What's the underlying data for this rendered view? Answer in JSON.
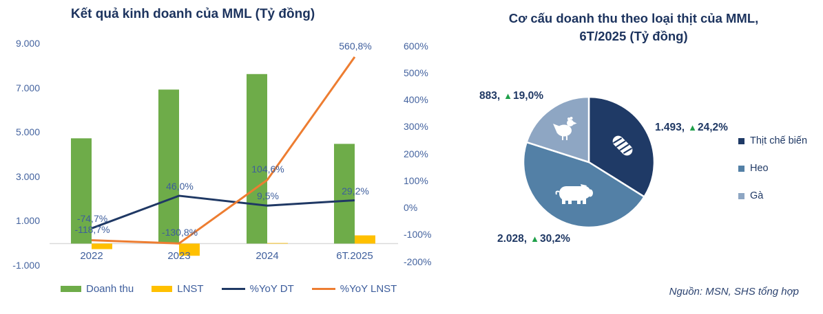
{
  "chart_data": [
    {
      "type": "bar+line",
      "title": "Kết quả kinh doanh của MML (Tỷ đồng)",
      "categories": [
        "2022",
        "2023",
        "2024",
        "6T.2025"
      ],
      "series": [
        {
          "name": "Doanh thu",
          "type": "bar",
          "axis": "left",
          "color": "#6EAC49",
          "values": [
            4750,
            6950,
            7650,
            4500
          ]
        },
        {
          "name": "LNST",
          "type": "bar",
          "axis": "left",
          "color": "#FFC000",
          "values": [
            -250,
            -550,
            25,
            370
          ]
        },
        {
          "name": "%YoY DT",
          "type": "line",
          "axis": "right",
          "color": "#1F3864",
          "values": [
            -74.7,
            46.0,
            9.5,
            29.2
          ],
          "labels": [
            "-74,7%",
            "46,0%",
            "9,5%",
            "29,2%"
          ]
        },
        {
          "name": "%YoY LNST",
          "type": "line",
          "axis": "right",
          "color": "#ED7D31",
          "values": [
            -118.7,
            -130.8,
            104.6,
            560.8
          ],
          "labels": [
            "-118,7%",
            "-130,8%",
            "104,6%",
            "560,8%"
          ]
        }
      ],
      "y_left_axis": {
        "min": -1000,
        "max": 9000,
        "step": 2000,
        "tick_labels": [
          "9.000",
          "7.000",
          "5.000",
          "3.000",
          "1.000",
          "-1.000"
        ]
      },
      "y_right_axis": {
        "min": -200,
        "max": 600,
        "step": 100,
        "tick_labels": [
          "600%",
          "500%",
          "400%",
          "300%",
          "200%",
          "100%",
          "0%",
          "-100%",
          "-200%"
        ]
      },
      "legend_position": "bottom",
      "grid": false
    },
    {
      "type": "pie",
      "title": [
        "Cơ cấu doanh thu theo loại thịt của MML,",
        "6T/2025 (Tỷ đồng)"
      ],
      "delta_icon": "▲",
      "slices": [
        {
          "name": "Thịt chế biến",
          "value": 1493,
          "label": "1.493,",
          "delta": "24,2%",
          "color": "#1F3A66",
          "icon": "hotdog-icon"
        },
        {
          "name": "Heo",
          "value": 2028,
          "label": "2.028,",
          "delta": "30,2%",
          "color": "#5380A6",
          "icon": "pig-icon"
        },
        {
          "name": "Gà",
          "value": 883,
          "label": "883,",
          "delta": "19,0%",
          "color": "#8EA6C3",
          "icon": "chicken-icon"
        }
      ],
      "legend": [
        "Thịt chế biến",
        "Heo",
        "Gà"
      ],
      "legend_position": "right",
      "delta_color": "#1FA04A",
      "source": "Nguồn: MSN, SHS tổng hợp"
    }
  ]
}
